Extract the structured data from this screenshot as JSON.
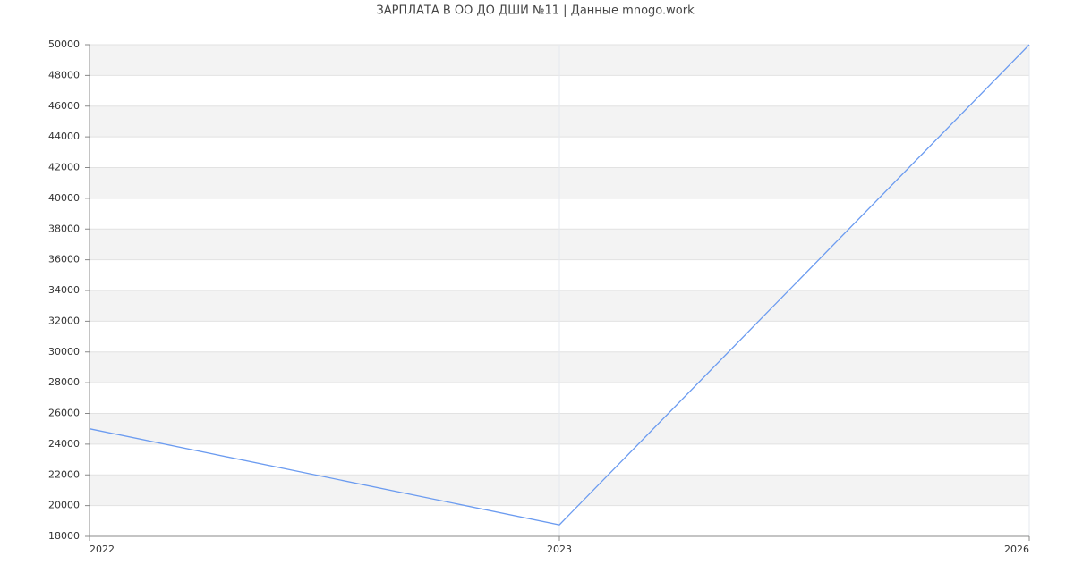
{
  "chart_data": {
    "type": "line",
    "title": "ЗАРПЛАТА В ОО ДО ДШИ №11 | Данные mnogo.work",
    "categories": [
      "2022",
      "2023",
      "2026"
    ],
    "series": [
      {
        "name": "Зарплата",
        "color": "#6b9bf0",
        "values": [
          25000,
          18750,
          50000
        ]
      }
    ],
    "ylim": [
      18000,
      50000
    ],
    "yticks": [
      18000,
      20000,
      22000,
      24000,
      26000,
      28000,
      30000,
      32000,
      34000,
      36000,
      38000,
      40000,
      42000,
      44000,
      46000,
      48000,
      50000
    ],
    "grid": true
  }
}
